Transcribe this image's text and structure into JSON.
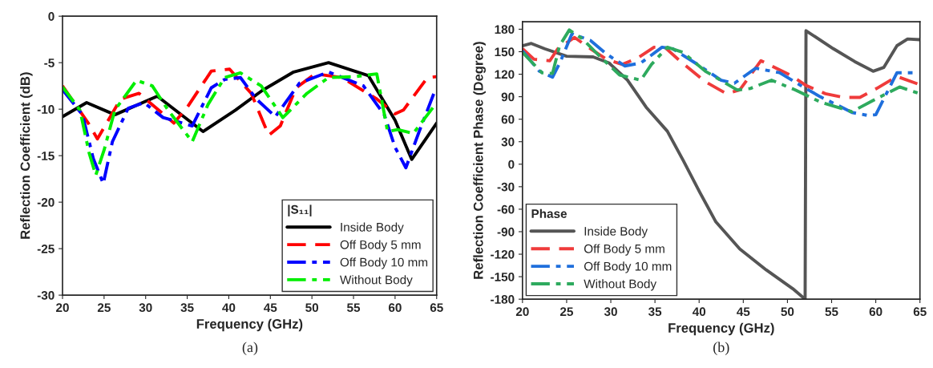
{
  "chart_data": [
    {
      "type": "line",
      "xlabel": "Frequency (GHz)",
      "ylabel": "Reflection Coefficient (dB)",
      "legend_title": "|S₁₁|",
      "legend": "bottom right",
      "grid": false,
      "xlim": [
        20,
        65
      ],
      "ylim": [
        -30,
        0
      ],
      "xticks": [
        20,
        25,
        30,
        35,
        40,
        45,
        50,
        55,
        60,
        65
      ],
      "yticks": [
        -30,
        -25,
        -20,
        -15,
        -10,
        -5,
        0
      ],
      "annotations": [
        "(a)"
      ],
      "series": [
        {
          "name": "Inside Body",
          "color": "#000000",
          "line_style": "solid",
          "x": [
            20,
            22.9,
            26.3,
            31.4,
            36.9,
            40.8,
            44,
            47.8,
            52,
            56.8,
            60,
            62,
            65
          ],
          "values": [
            -10.8,
            -9.3,
            -10.6,
            -8.6,
            -12.4,
            -10.1,
            -8.0,
            -6.0,
            -5.0,
            -6.4,
            -11.2,
            -15.4,
            -11.5
          ]
        },
        {
          "name": "Off Body 5 mm",
          "color": "#ff0000",
          "line_style": "dashed",
          "x": [
            20,
            23.1,
            24.2,
            27,
            29.2,
            33.4,
            35,
            37.9,
            40.1,
            42.7,
            44.8,
            46.2,
            48.1,
            50.4,
            53.6,
            57.8,
            60,
            61,
            63.9,
            65
          ],
          "values": [
            -7.5,
            -11.5,
            -13.2,
            -8.9,
            -8.3,
            -11.5,
            -9.8,
            -5.9,
            -5.7,
            -8.3,
            -12.8,
            -11.8,
            -7.7,
            -6.2,
            -6.6,
            -8.9,
            -10.5,
            -10.1,
            -6.6,
            -6.5
          ]
        },
        {
          "name": "Off Body 10 mm",
          "color": "#0000ff",
          "line_style": "dashdot",
          "x": [
            20,
            22.4,
            23.7,
            24.9,
            26,
            27.9,
            29.8,
            32.1,
            35.6,
            37.9,
            39.5,
            41.4,
            43.3,
            45.6,
            48.5,
            52,
            56.2,
            58.7,
            60,
            61.3,
            62.9,
            64.8
          ],
          "values": [
            -7.9,
            -10.6,
            -15.3,
            -18.0,
            -13.5,
            -9.9,
            -9.3,
            -10.9,
            -11.8,
            -7.7,
            -6.8,
            -6.6,
            -8.9,
            -10.8,
            -7.2,
            -6.0,
            -7.5,
            -10.6,
            -14.1,
            -16.3,
            -12.4,
            -8.0
          ]
        },
        {
          "name": "Without Body",
          "color": "#00ee00",
          "line_style": "dashdot",
          "x": [
            20,
            22.1,
            23.2,
            24,
            25,
            26.3,
            28.9,
            30.8,
            32.7,
            35.6,
            37.5,
            39.5,
            41.4,
            43.9,
            46.5,
            49.4,
            52,
            55.2,
            57.8,
            59.1,
            60.3,
            62.2,
            65
          ],
          "values": [
            -7.6,
            -10.1,
            -14.7,
            -17.1,
            -14.4,
            -10.1,
            -6.9,
            -7.5,
            -10.1,
            -13.5,
            -9.5,
            -6.6,
            -6.1,
            -7.5,
            -10.9,
            -8.3,
            -6.6,
            -6.5,
            -6.2,
            -12.4,
            -12.2,
            -12.6,
            -9.3
          ]
        }
      ]
    },
    {
      "type": "line",
      "xlabel": "Frequency (GHz)",
      "ylabel": "Reflection Coefficient Phase (Degree)",
      "legend_title": "Phase",
      "legend": "bottom left",
      "grid": false,
      "xlim": [
        20,
        65
      ],
      "ylim": [
        -180,
        190
      ],
      "xticks": [
        20,
        25,
        30,
        35,
        40,
        45,
        50,
        55,
        60,
        65
      ],
      "yticks": [
        -180,
        -150,
        -120,
        -90,
        -60,
        -30,
        0,
        30,
        60,
        90,
        120,
        150,
        180
      ],
      "annotations": [
        "(b)"
      ],
      "series": [
        {
          "name": "Inside Body",
          "color": "#555555",
          "line_style": "solid",
          "x": [
            20,
            21,
            22.5,
            25,
            28,
            29.8,
            31.9,
            34,
            36.4,
            38.2,
            40.1,
            41.9,
            44.6,
            47.6,
            50.6,
            52,
            52.1,
            55.2,
            57.6,
            59.7,
            60.9,
            62.4,
            63.6,
            65
          ],
          "values": [
            158,
            161,
            154,
            144,
            143,
            135,
            112,
            76,
            44,
            5,
            -38,
            -77,
            -113,
            -141,
            -166,
            -180,
            178,
            154,
            137,
            124,
            129,
            158,
            167,
            166
          ]
        },
        {
          "name": "Off Body 5 mm",
          "color": "#ef3b3b",
          "line_style": "dashed",
          "x": [
            20,
            21.3,
            23.1,
            24,
            25.9,
            27.7,
            29.5,
            31.3,
            33.1,
            34.9,
            36.1,
            37.9,
            40.7,
            43.1,
            44.6,
            47,
            50.3,
            52.1,
            54.3,
            56.4,
            58.2,
            60.1,
            62.4,
            65
          ],
          "values": [
            154,
            140,
            138,
            154,
            169,
            154,
            140,
            133,
            142,
            156,
            156,
            137,
            110,
            94,
            99,
            138,
            119,
            105,
            94,
            89,
            89,
            101,
            117,
            106
          ]
        },
        {
          "name": "Off Body 10 mm",
          "color": "#1f6fdc",
          "line_style": "dashdot",
          "x": [
            20,
            21.9,
            23.4,
            24.3,
            25.6,
            27.7,
            29.5,
            31.6,
            33.4,
            35.8,
            37,
            40.1,
            42.5,
            44,
            46.4,
            49.1,
            51.5,
            53.7,
            55.8,
            57.3,
            59.1,
            60,
            61.2,
            62.4,
            64.2
          ],
          "values": [
            151,
            124,
            116,
            137,
            174,
            165,
            147,
            131,
            135,
            156,
            154,
            131,
            112,
            108,
            128,
            122,
            105,
            90,
            78,
            69,
            65,
            66,
            94,
            122,
            122
          ]
        },
        {
          "name": "Without Body",
          "color": "#2eaa5e",
          "line_style": "dashdot",
          "x": [
            20,
            22.2,
            23.4,
            24.2,
            25.3,
            26.8,
            28.9,
            31,
            33.4,
            34.6,
            36.4,
            38.2,
            40.7,
            44.3,
            45.8,
            48.2,
            50.9,
            53.7,
            57.3,
            59.7,
            62.7,
            65
          ],
          "values": [
            149,
            122,
            121,
            158,
            179,
            167,
            142,
            119,
            112,
            133,
            156,
            149,
            124,
            99,
            101,
            112,
            99,
            83,
            70,
            85,
            103,
            94
          ]
        }
      ]
    }
  ]
}
